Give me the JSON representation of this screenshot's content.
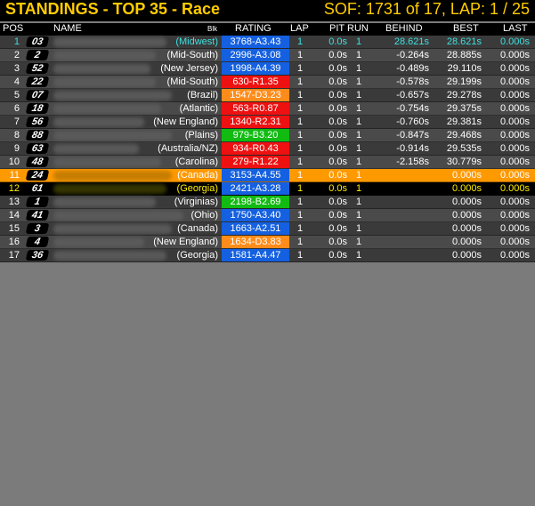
{
  "header": {
    "title": "STANDINGS - TOP 35 - Race",
    "sof": "SOF: 1731 of 17, LAP: 1 / 25"
  },
  "columns": {
    "pos": "POS",
    "name": "NAME",
    "blk": "Blk",
    "rating": "RATING",
    "lap": "LAP",
    "pit": "PIT",
    "run": "RUN",
    "behind": "BEHIND",
    "best": "BEST",
    "last": "LAST"
  },
  "colors": {
    "title": "#ffcc00",
    "rating_blue": "#1460e0",
    "rating_red": "#ee1111",
    "rating_orange": "#ff8c1a",
    "rating_green": "#11bb11",
    "highlight_orange": "#ff9900",
    "highlight_yellow_text": "#ffee00"
  },
  "rows": [
    {
      "pos": "1",
      "num": "03",
      "name": "(Midwest)",
      "rating": "3768-A3.43",
      "rating_color": "blue",
      "lap": "1",
      "pit": "0.0s",
      "run": "1",
      "behind": "28.621s",
      "best": "28.621s",
      "last": "0.000s",
      "style": "first"
    },
    {
      "pos": "2",
      "num": "2",
      "name": "(Mid-South)",
      "rating": "2996-A3.08",
      "rating_color": "blue",
      "lap": "1",
      "pit": "0.0s",
      "run": "1",
      "behind": "-0.264s",
      "best": "28.885s",
      "last": "0.000s",
      "style": "even"
    },
    {
      "pos": "3",
      "num": "52",
      "name": "(New Jersey)",
      "rating": "1998-A4.39",
      "rating_color": "blue",
      "lap": "1",
      "pit": "0.0s",
      "run": "1",
      "behind": "-0.489s",
      "best": "29.110s",
      "last": "0.000s",
      "style": "odd"
    },
    {
      "pos": "4",
      "num": "22",
      "name": "(Mid-South)",
      "rating": "630-R1.35",
      "rating_color": "red",
      "lap": "1",
      "pit": "0.0s",
      "run": "1",
      "behind": "-0.578s",
      "best": "29.199s",
      "last": "0.000s",
      "style": "even"
    },
    {
      "pos": "5",
      "num": "07",
      "name": "(Brazil)",
      "rating": "1547-D3.23",
      "rating_color": "orange",
      "lap": "1",
      "pit": "0.0s",
      "run": "1",
      "behind": "-0.657s",
      "best": "29.278s",
      "last": "0.000s",
      "style": "odd"
    },
    {
      "pos": "6",
      "num": "18",
      "name": "(Atlantic)",
      "rating": "563-R0.87",
      "rating_color": "red",
      "lap": "1",
      "pit": "0.0s",
      "run": "1",
      "behind": "-0.754s",
      "best": "29.375s",
      "last": "0.000s",
      "style": "even"
    },
    {
      "pos": "7",
      "num": "56",
      "name": "(New England)",
      "rating": "1340-R2.31",
      "rating_color": "red",
      "lap": "1",
      "pit": "0.0s",
      "run": "1",
      "behind": "-0.760s",
      "best": "29.381s",
      "last": "0.000s",
      "style": "odd"
    },
    {
      "pos": "8",
      "num": "88",
      "name": "(Plains)",
      "rating": "979-B3.20",
      "rating_color": "green",
      "lap": "1",
      "pit": "0.0s",
      "run": "1",
      "behind": "-0.847s",
      "best": "29.468s",
      "last": "0.000s",
      "style": "even"
    },
    {
      "pos": "9",
      "num": "63",
      "name": "(Australia/NZ)",
      "rating": "934-R0.43",
      "rating_color": "red",
      "lap": "1",
      "pit": "0.0s",
      "run": "1",
      "behind": "-0.914s",
      "best": "29.535s",
      "last": "0.000s",
      "style": "odd"
    },
    {
      "pos": "10",
      "num": "48",
      "name": "(Carolina)",
      "rating": "279-R1.22",
      "rating_color": "red",
      "lap": "1",
      "pit": "0.0s",
      "run": "1",
      "behind": "-2.158s",
      "best": "30.779s",
      "last": "0.000s",
      "style": "even"
    },
    {
      "pos": "11",
      "num": "24",
      "name": "(Canada)",
      "rating": "3153-A4.55",
      "rating_color": "blue",
      "lap": "1",
      "pit": "0.0s",
      "run": "1",
      "behind": "",
      "best": "0.000s",
      "last": "0.000s",
      "style": "hl-orange"
    },
    {
      "pos": "12",
      "num": "61",
      "name": "(Georgia)",
      "rating": "2421-A3.28",
      "rating_color": "blue",
      "lap": "1",
      "pit": "0.0s",
      "run": "1",
      "behind": "",
      "best": "0.000s",
      "last": "0.000s",
      "style": "hl-black"
    },
    {
      "pos": "13",
      "num": "1",
      "name": "(Virginias)",
      "rating": "2198-B2.69",
      "rating_color": "green",
      "lap": "1",
      "pit": "0.0s",
      "run": "1",
      "behind": "",
      "best": "0.000s",
      "last": "0.000s",
      "style": "odd"
    },
    {
      "pos": "14",
      "num": "41",
      "name": "(Ohio)",
      "rating": "1750-A3.40",
      "rating_color": "blue",
      "lap": "1",
      "pit": "0.0s",
      "run": "1",
      "behind": "",
      "best": "0.000s",
      "last": "0.000s",
      "style": "even"
    },
    {
      "pos": "15",
      "num": "3",
      "name": "(Canada)",
      "rating": "1663-A2.51",
      "rating_color": "blue",
      "lap": "1",
      "pit": "0.0s",
      "run": "1",
      "behind": "",
      "best": "0.000s",
      "last": "0.000s",
      "style": "odd"
    },
    {
      "pos": "16",
      "num": "4",
      "name": "(New England)",
      "rating": "1634-D3.83",
      "rating_color": "orange",
      "lap": "1",
      "pit": "0.0s",
      "run": "1",
      "behind": "",
      "best": "0.000s",
      "last": "0.000s",
      "style": "even"
    },
    {
      "pos": "17",
      "num": "36",
      "name": "(Georgia)",
      "rating": "1581-A4.47",
      "rating_color": "blue",
      "lap": "1",
      "pit": "0.0s",
      "run": "1",
      "behind": "",
      "best": "0.000s",
      "last": "0.000s",
      "style": "odd"
    }
  ]
}
